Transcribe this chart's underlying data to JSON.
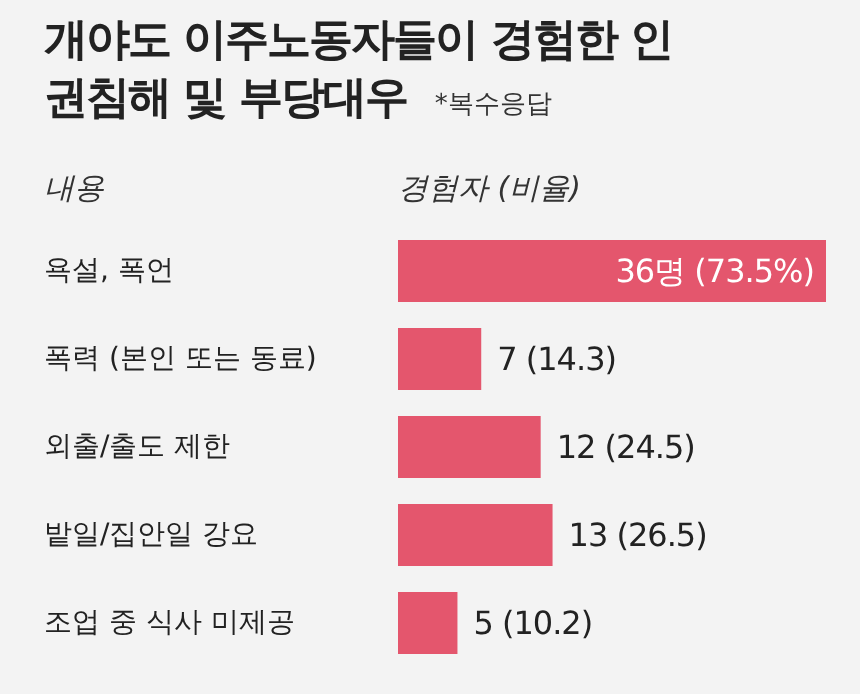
{
  "chart_data": {
    "type": "bar",
    "orientation": "horizontal",
    "title": "개야도 이주노동자들이 경험한 인권침해 및 부당대우",
    "annotations": [
      "*복수응답"
    ],
    "ylabel": "내용",
    "xlabel": "경험자 (비율)",
    "categories": [
      "욕설, 폭언",
      "폭력 (본인 또는 동료)",
      "외출/출도 제한",
      "밭일/집안일 강요",
      "조업 중 식사 미제공"
    ],
    "values": [
      36,
      7,
      12,
      13,
      5
    ],
    "value_labels": [
      "36명 (73.5%)",
      "7 (14.3)",
      "12 (24.5)",
      "13 (26.5)",
      "5 (10.2)"
    ],
    "color": "#e4566d"
  }
}
